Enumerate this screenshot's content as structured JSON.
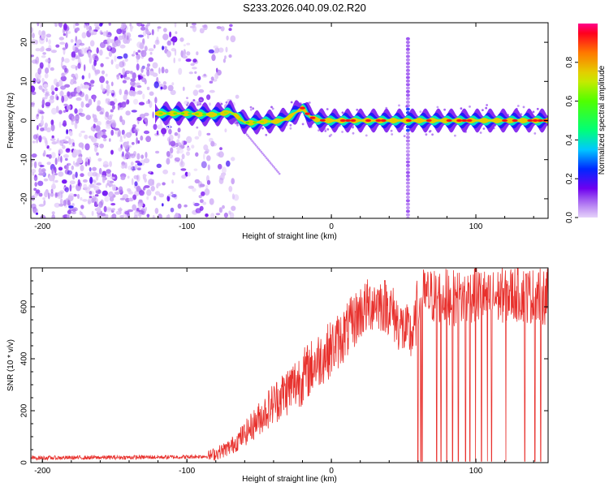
{
  "title": "S233.2026.040.09.02.R20",
  "chart_data": [
    {
      "type": "heatmap",
      "title": "S233.2026.040.09.02.R20",
      "xlabel": "Height of straight line (km)",
      "ylabel": "Frequency (Hz)",
      "xlim": [
        -208,
        150
      ],
      "ylim": [
        -25,
        25
      ],
      "xticks": [
        -200,
        -100,
        0,
        100
      ],
      "yticks": [
        -20,
        -10,
        0,
        10,
        20
      ],
      "colorbar": {
        "label": "Normalized spectral amplitude",
        "range": [
          0.0,
          1.0
        ],
        "ticks": [
          0.0,
          0.2,
          0.4,
          0.6,
          0.8
        ]
      },
      "ridge": {
        "description": "main echo frequency trace",
        "x": [
          -120,
          -100,
          -90,
          -80,
          -70,
          -65,
          -60,
          -55,
          -50,
          -45,
          -40,
          -35,
          -30,
          -25,
          -20,
          -18,
          -15,
          -10,
          -5,
          0,
          20,
          40,
          55,
          60,
          80,
          100,
          120,
          140,
          150
        ],
        "freq": [
          1.8,
          1.8,
          1.6,
          1.5,
          2.2,
          1.0,
          -0.5,
          -0.6,
          -0.4,
          -0.2,
          -0.3,
          0.0,
          0.6,
          2.0,
          3.2,
          2.5,
          1.0,
          0.2,
          0.0,
          0.0,
          0.0,
          0.0,
          0.0,
          0.0,
          0.0,
          0.0,
          0.0,
          0.0,
          0.0
        ]
      },
      "noise_region_x": [
        -208,
        -85
      ],
      "vertical_spike_x": 53
    },
    {
      "type": "line",
      "xlabel": "Height of straight line (km)",
      "ylabel": "SNR (10 * v/v)",
      "xlim": [
        -208,
        150
      ],
      "ylim": [
        0,
        750
      ],
      "xticks": [
        -200,
        -100,
        0,
        100
      ],
      "yticks": [
        0,
        200,
        400,
        600
      ],
      "color": "#e8312d",
      "envelope": {
        "x": [
          -208,
          -150,
          -100,
          -85,
          -80,
          -70,
          -60,
          -50,
          -40,
          -30,
          -20,
          -10,
          0,
          10,
          20,
          30,
          40,
          45,
          50,
          55,
          58,
          60,
          70,
          80,
          90,
          100,
          110,
          120,
          130,
          140,
          150
        ],
        "y": [
          18,
          20,
          22,
          25,
          35,
          60,
          110,
          170,
          230,
          280,
          330,
          390,
          440,
          500,
          580,
          620,
          600,
          550,
          510,
          490,
          520,
          640,
          640,
          640,
          630,
          650,
          630,
          650,
          650,
          640,
          640
        ]
      },
      "dropouts_x": [
        60,
        61,
        62,
        63,
        73,
        76,
        80,
        84,
        88,
        93,
        96,
        100,
        104,
        108,
        111,
        121,
        134,
        141,
        145,
        149
      ]
    }
  ]
}
